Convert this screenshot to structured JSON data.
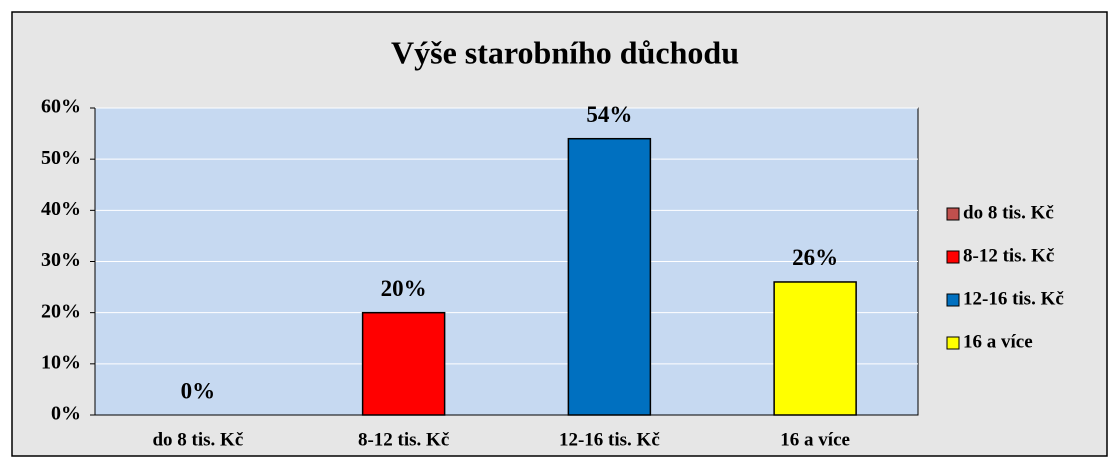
{
  "chart_data": {
    "type": "bar",
    "title": "Výše starobního důchodu",
    "categories": [
      "do 8 tis. Kč",
      "8-12 tis. Kč",
      "12-16 tis. Kč",
      "16 a více"
    ],
    "values": [
      0,
      20,
      54,
      26
    ],
    "value_labels": [
      "0%",
      "20%",
      "54%",
      "26%"
    ],
    "colors": [
      "#c0504d",
      "#ff0000",
      "#0070c0",
      "#ffff00"
    ],
    "ylim": [
      0,
      60
    ],
    "yticks": [
      {
        "value": 0,
        "label": "0%"
      },
      {
        "value": 10,
        "label": "10%"
      },
      {
        "value": 20,
        "label": "20%"
      },
      {
        "value": 30,
        "label": "30%"
      },
      {
        "value": 40,
        "label": "40%"
      },
      {
        "value": 50,
        "label": "50%"
      },
      {
        "value": 60,
        "label": "60%"
      }
    ],
    "grid": true,
    "legend": "right"
  }
}
